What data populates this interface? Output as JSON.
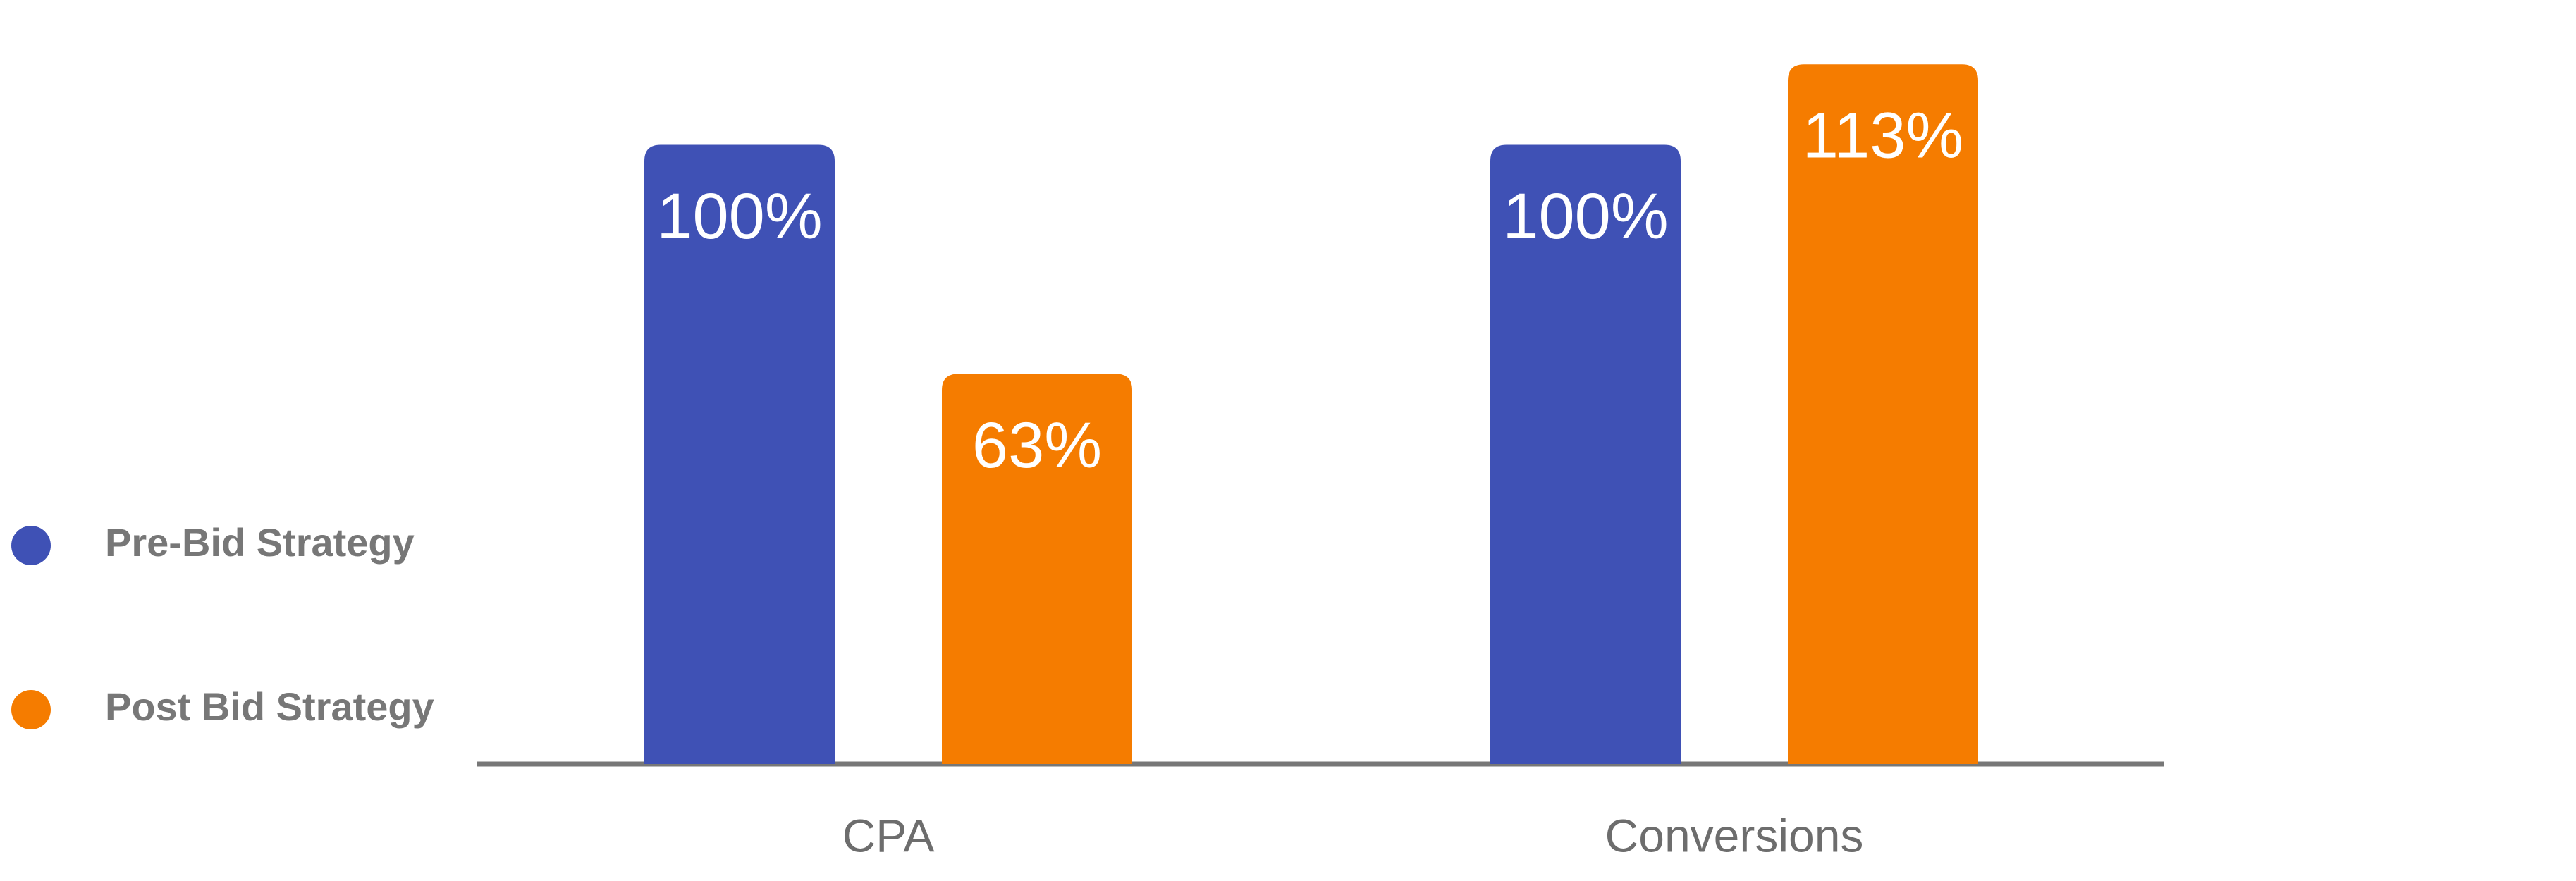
{
  "chart_data": {
    "type": "bar",
    "categories": [
      "CPA",
      "Conversions"
    ],
    "series": [
      {
        "name": "Pre-Bid Strategy",
        "color": "#3f51b5",
        "values": [
          100,
          100
        ],
        "value_labels": [
          "100%",
          "100%"
        ]
      },
      {
        "name": "Post Bid Strategy",
        "color": "#f57c00",
        "values": [
          63,
          113
        ],
        "value_labels": [
          "63%",
          "113%"
        ]
      }
    ],
    "legend": "left"
  }
}
